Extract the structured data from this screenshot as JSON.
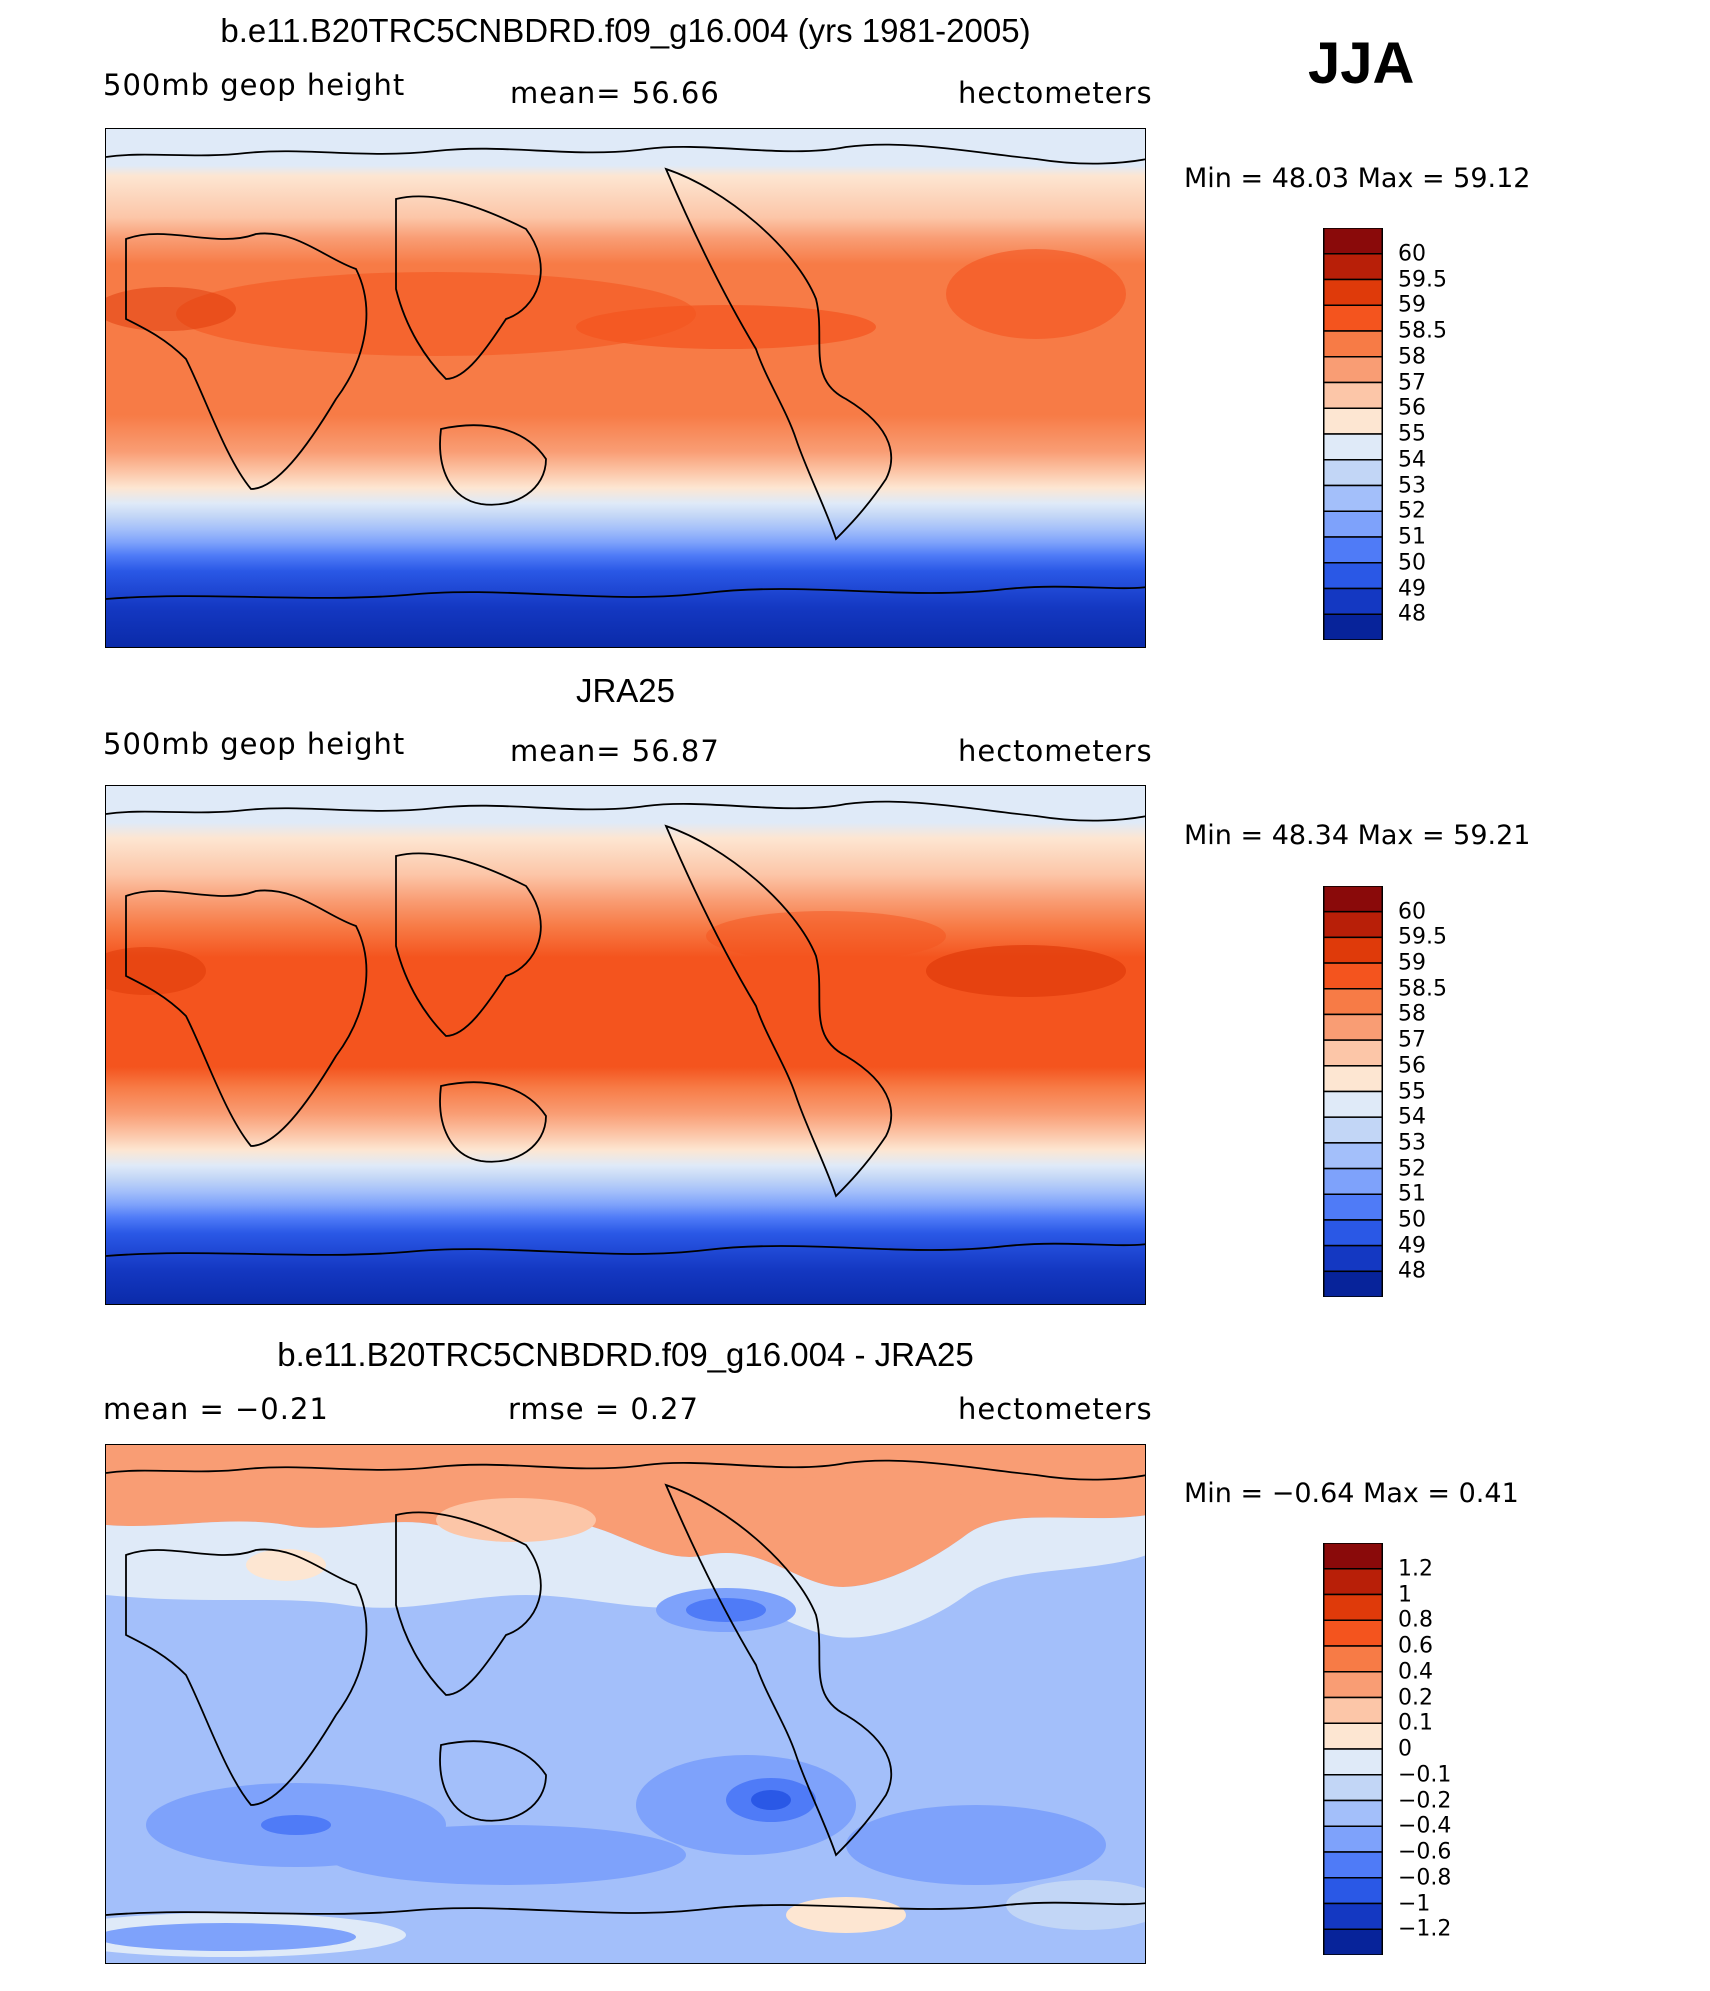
{
  "season_label": "JJA",
  "panels": [
    {
      "title": "b.e11.B20TRC5CNBDRD.f09_g16.004 (yrs 1981-2005)",
      "left_label": "500mb geop height",
      "mid_label": "mean=   56.66",
      "right_label": "hectometers",
      "minmax": "Min =    48.03  Max =    59.12"
    },
    {
      "title": "JRA25",
      "left_label": "500mb geop height",
      "mid_label": "mean=   56.87",
      "right_label": "hectometers",
      "minmax": "Min =    48.34  Max =    59.21"
    },
    {
      "title": "b.e11.B20TRC5CNBDRD.f09_g16.004 - JRA25",
      "left_label": "mean =    −0.21",
      "mid_label": "rmse =     0.27",
      "right_label": "hectometers",
      "minmax": "Min =   −0.64  Max =     0.41"
    }
  ],
  "colorbars": [
    {
      "labels": [
        "60",
        "59.5",
        "59",
        "58.5",
        "58",
        "57",
        "56",
        "55",
        "54",
        "53",
        "52",
        "51",
        "50",
        "49",
        "48"
      ],
      "colors": [
        "#8a0a0a",
        "#b81f08",
        "#df3a0a",
        "#f4541e",
        "#f77b46",
        "#f99d74",
        "#fcc6a8",
        "#fde6d2",
        "#dfeaf8",
        "#c2d6f6",
        "#a3bffa",
        "#7ea2fb",
        "#4f7bf7",
        "#2a58e6",
        "#1438c2",
        "#07239a"
      ]
    },
    {
      "labels": [
        "60",
        "59.5",
        "59",
        "58.5",
        "58",
        "57",
        "56",
        "55",
        "54",
        "53",
        "52",
        "51",
        "50",
        "49",
        "48"
      ],
      "colors": [
        "#8a0a0a",
        "#b81f08",
        "#df3a0a",
        "#f4541e",
        "#f77b46",
        "#f99d74",
        "#fcc6a8",
        "#fde6d2",
        "#dfeaf8",
        "#c2d6f6",
        "#a3bffa",
        "#7ea2fb",
        "#4f7bf7",
        "#2a58e6",
        "#1438c2",
        "#07239a"
      ]
    },
    {
      "labels": [
        "1.2",
        "1",
        "0.8",
        "0.6",
        "0.4",
        "0.2",
        "0.1",
        "0",
        "−0.1",
        "−0.2",
        "−0.4",
        "−0.6",
        "−0.8",
        "−1",
        "−1.2"
      ],
      "colors": [
        "#8a0a0a",
        "#b81f08",
        "#df3a0a",
        "#f4541e",
        "#f77b46",
        "#f99d74",
        "#fcc6a8",
        "#fde6d2",
        "#dfeaf8",
        "#c2d6f6",
        "#a3bffa",
        "#7ea2fb",
        "#4f7bf7",
        "#2a58e6",
        "#1438c2",
        "#07239a"
      ]
    }
  ],
  "chart_data": [
    {
      "type": "heatmap",
      "title": "b.e11.B20TRC5CNBDRD.f09_g16.004 (yrs 1981-2005)",
      "variable": "500mb geop height",
      "units": "hectometers",
      "mean": 56.66,
      "min": 48.03,
      "max": 59.12,
      "contour_levels": [
        48,
        49,
        50,
        51,
        52,
        53,
        54,
        55,
        56,
        57,
        58,
        58.5,
        59,
        59.5,
        60
      ]
    },
    {
      "type": "heatmap",
      "title": "JRA25",
      "variable": "500mb geop height",
      "units": "hectometers",
      "mean": 56.87,
      "min": 48.34,
      "max": 59.21,
      "contour_levels": [
        48,
        49,
        50,
        51,
        52,
        53,
        54,
        55,
        56,
        57,
        58,
        58.5,
        59,
        59.5,
        60
      ]
    },
    {
      "type": "heatmap",
      "title": "b.e11.B20TRC5CNBDRD.f09_g16.004 - JRA25",
      "units": "hectometers",
      "mean": -0.21,
      "rmse": 0.27,
      "min": -0.64,
      "max": 0.41,
      "contour_levels": [
        -1.2,
        -1,
        -0.8,
        -0.6,
        -0.4,
        -0.2,
        -0.1,
        0,
        0.1,
        0.2,
        0.4,
        0.6,
        0.8,
        1,
        1.2
      ]
    }
  ]
}
